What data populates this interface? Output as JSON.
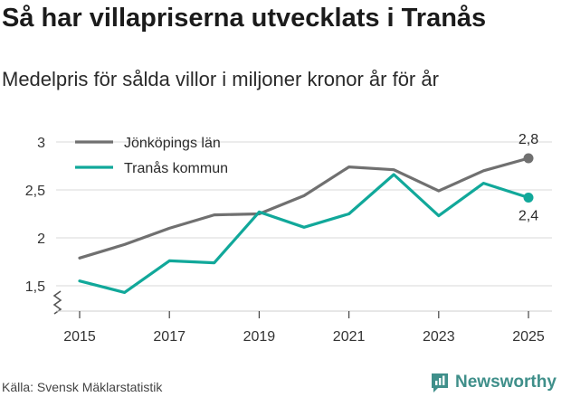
{
  "header": {
    "title": "Så har villapriserna utvecklats i Tranås",
    "subtitle": "Medelpris för sålda villor i miljoner kronor år för år"
  },
  "footer": {
    "source": "Källa: Svensk Mäklarstatistik",
    "brand": "Newsworthy"
  },
  "colors": {
    "series_1": "#707070",
    "series_2": "#11a89a",
    "grid": "#d9d9d9",
    "brand": "#3f8f8a"
  },
  "chart_data": {
    "type": "line",
    "title": "Så har villapriserna utvecklats i Tranås",
    "subtitle": "Medelpris för sålda villor i miljoner kronor år för år",
    "xlabel": "",
    "ylabel": "",
    "x": [
      2015,
      2016,
      2017,
      2018,
      2019,
      2020,
      2021,
      2022,
      2023,
      2024,
      2025
    ],
    "xticks": [
      2015,
      2017,
      2019,
      2021,
      2023,
      2025
    ],
    "xtick_labels": [
      "2015",
      "2017",
      "2019",
      "2021",
      "2023",
      "2025"
    ],
    "xlim": [
      2014.8,
      2025.2
    ],
    "yticks": [
      1.5,
      2,
      2.5,
      3
    ],
    "ytick_labels": [
      "1,5",
      "2",
      "2,5",
      "3"
    ],
    "ylim": [
      1.3,
      3.0
    ],
    "grid": "horizontal",
    "axis_break": true,
    "legend_position": "top-left",
    "series": [
      {
        "name": "Jönköpings län",
        "color": "#707070",
        "values": [
          1.79,
          1.93,
          2.1,
          2.24,
          2.25,
          2.44,
          2.74,
          2.71,
          2.49,
          2.7,
          2.83
        ],
        "end_label": "2,8",
        "end_label_placement": "above"
      },
      {
        "name": "Tranås kommun",
        "color": "#11a89a",
        "values": [
          1.55,
          1.43,
          1.76,
          1.74,
          2.27,
          2.11,
          2.25,
          2.66,
          2.23,
          2.57,
          2.42
        ],
        "end_label": "2,4",
        "end_label_placement": "below"
      }
    ]
  }
}
